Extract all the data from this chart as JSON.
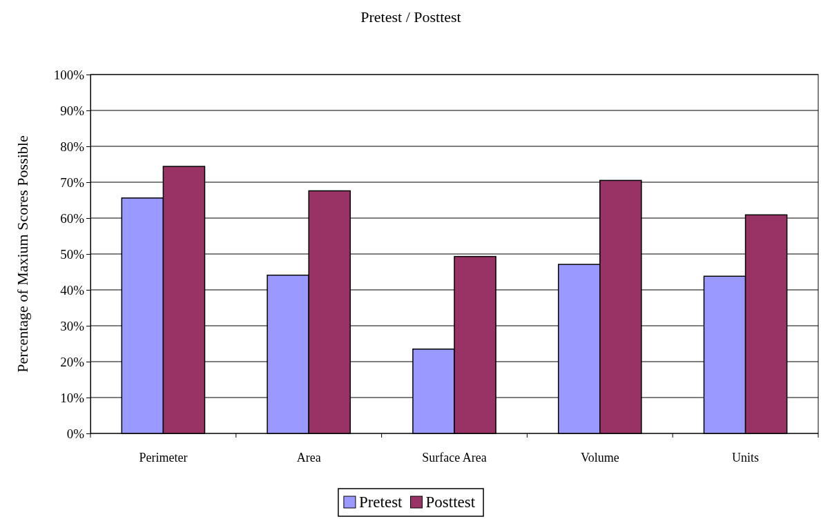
{
  "chart_data": {
    "type": "bar",
    "title": "Pretest / Posttest",
    "ylabel": "Percentage of Maxium Scores Possible",
    "categories": [
      "Perimeter",
      "Area",
      "Surface Area",
      "Volume",
      "Units"
    ],
    "series": [
      {
        "name": "Pretest",
        "color": "#9999ff",
        "values": [
          65.6,
          44.1,
          23.5,
          47.1,
          43.8
        ]
      },
      {
        "name": "Posttest",
        "color": "#993366",
        "values": [
          74.4,
          67.6,
          49.3,
          70.5,
          60.9
        ]
      }
    ],
    "ylim": [
      0,
      100
    ],
    "yticks": [
      {
        "value": 0,
        "label": "0%"
      },
      {
        "value": 10,
        "label": "10%"
      },
      {
        "value": 20,
        "label": "20%"
      },
      {
        "value": 30,
        "label": "30%"
      },
      {
        "value": 40,
        "label": "40%"
      },
      {
        "value": 50,
        "label": "50%"
      },
      {
        "value": 60,
        "label": "60%"
      },
      {
        "value": 70,
        "label": "70%"
      },
      {
        "value": 80,
        "label": "80%"
      },
      {
        "value": 90,
        "label": "90%"
      },
      {
        "value": 100,
        "label": "100%"
      }
    ],
    "grid": "y",
    "legend": "bottom"
  }
}
